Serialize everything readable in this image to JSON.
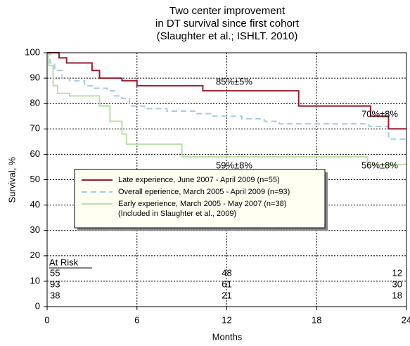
{
  "chart_data": {
    "type": "step",
    "title": [
      "Two center improvement",
      "in DT survival since first cohort",
      "(Slaughter et al.; ISHLT. 2010)"
    ],
    "xlabel": "Months",
    "ylabel": "Survival, %",
    "xlim": [
      0,
      24
    ],
    "xticks": [
      0,
      6,
      12,
      18,
      24
    ],
    "ylim": [
      0,
      100
    ],
    "yticks": [
      0,
      10,
      20,
      30,
      40,
      50,
      60,
      70,
      80,
      90,
      100
    ],
    "grid": true,
    "series": [
      {
        "name": "Late experience, June 2007 - April 2009 (n=55)",
        "color": "#9b1c2e",
        "dash": false,
        "x": [
          0,
          0.8,
          1.3,
          3,
          3.5,
          5,
          6,
          10.4,
          16.8,
          21.6,
          22.8,
          24
        ],
        "values": [
          100,
          98,
          96,
          93,
          90,
          89,
          87,
          85,
          79,
          75,
          70,
          70
        ]
      },
      {
        "name": "Overall eperience, March 2005 - April 2009 (n=93)",
        "color": "#a9c9e6",
        "dash": true,
        "x": [
          0,
          0.2,
          0.5,
          1,
          1.5,
          2.5,
          3,
          4,
          4.5,
          5,
          5.5,
          6.5,
          8,
          10,
          11,
          13,
          14.5,
          15.5,
          21.5,
          22.8,
          24
        ],
        "values": [
          100,
          96,
          93,
          90,
          89,
          87,
          86,
          85,
          83,
          82,
          79,
          78,
          77,
          76,
          75,
          74,
          73,
          72,
          71,
          66,
          65
        ]
      },
      {
        "name": "Early experience, March 2005 - May 2007 (n=38)",
        "note": "(Included in Slaughter et al., 2009)",
        "color": "#b9e0a9",
        "dash": false,
        "x": [
          0,
          0.1,
          0.4,
          0.7,
          1.5,
          3.5,
          4.2,
          5,
          5.3,
          9,
          21.4,
          24
        ],
        "values": [
          100,
          95,
          87,
          84,
          83,
          79,
          73,
          68,
          64,
          59,
          56,
          56
        ]
      }
    ],
    "annotations": [
      "85%±5%",
      "70%±8%",
      "59%±8%",
      "56%±8%"
    ],
    "at_risk": {
      "label": "At Risk",
      "months": [
        0,
        12,
        24
      ],
      "rows": [
        [
          55,
          48,
          12
        ],
        [
          93,
          61,
          30
        ],
        [
          38,
          21,
          18
        ]
      ]
    }
  }
}
